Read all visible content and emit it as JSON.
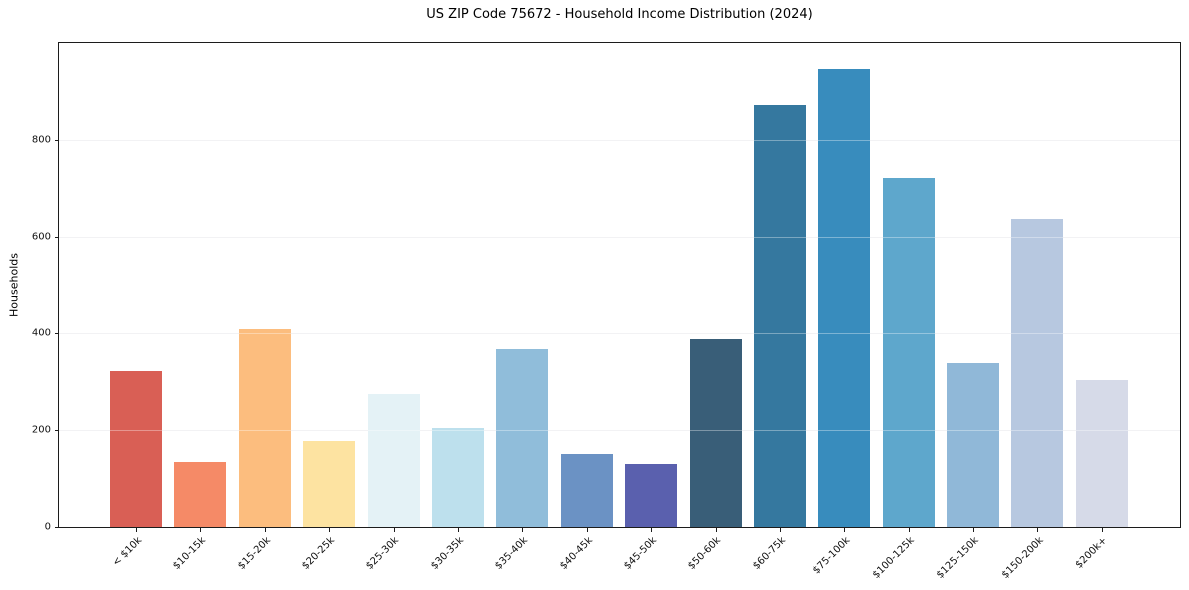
{
  "chart_data": {
    "type": "bar",
    "title": "US ZIP Code 75672 - Household Income Distribution (2024)",
    "xlabel": "",
    "ylabel": "Households",
    "categories": [
      "< $10k",
      "$10-15k",
      "$15-20k",
      "$20-25k",
      "$25-30k",
      "$30-35k",
      "$35-40k",
      "$40-45k",
      "$45-50k",
      "$50-60k",
      "$60-75k",
      "$75-100k",
      "$100-125k",
      "$125-150k",
      "$150-200k",
      "$200k+"
    ],
    "values": [
      322,
      135,
      410,
      178,
      274,
      205,
      367,
      151,
      131,
      388,
      872,
      947,
      722,
      338,
      636,
      304
    ],
    "bar_colors": [
      "#d95f55",
      "#f58a67",
      "#fcbd7e",
      "#fde3a1",
      "#e4f2f6",
      "#bde0ed",
      "#90bdda",
      "#6b92c4",
      "#5a60ae",
      "#395e78",
      "#35789f",
      "#388cbd",
      "#5ea7cc",
      "#90b8d8",
      "#b7c8e0",
      "#d6dae8"
    ],
    "ylim": [
      0,
      1000
    ],
    "yticks": [
      0,
      200,
      400,
      600,
      800
    ],
    "grid": "horizontal",
    "grid_color": "#ebebef",
    "x_tick_rotation": 45,
    "legend": "none",
    "background_color": "#ffffff",
    "spine_color": "#1c1c1c"
  }
}
